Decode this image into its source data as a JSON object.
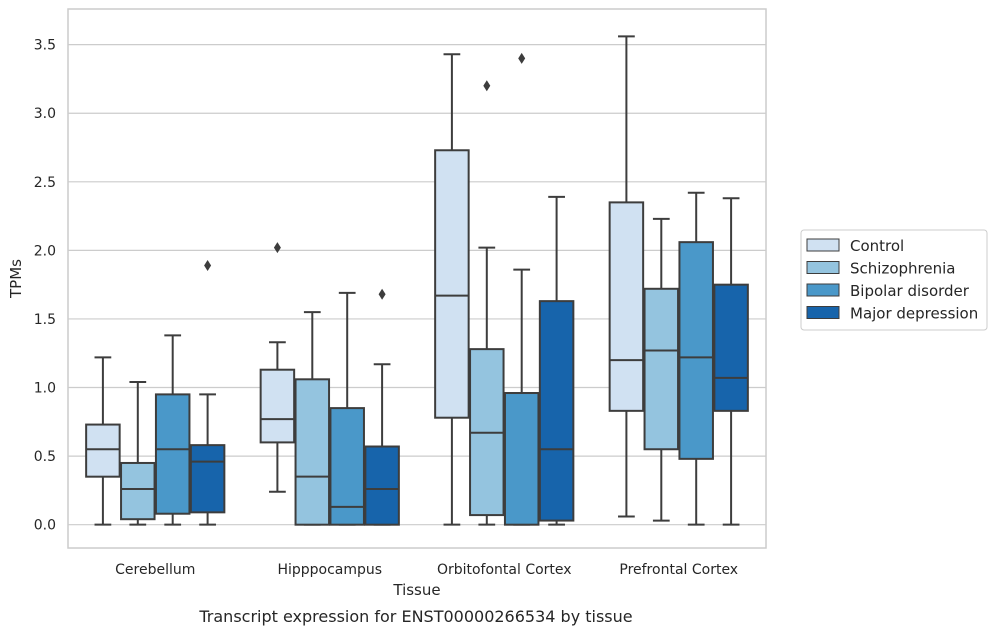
{
  "caption": "Transcript expression for ENST00000266534 by tissue",
  "chart_data": {
    "type": "box",
    "xlabel": "Tissue",
    "ylabel": "TPMs",
    "ylim": [
      -0.17,
      3.76
    ],
    "yticks": [
      "0.0",
      "0.5",
      "1.0",
      "1.5",
      "2.0",
      "2.5",
      "3.0",
      "3.5"
    ],
    "ytick_values": [
      0,
      0.5,
      1.0,
      1.5,
      2.0,
      2.5,
      3.0,
      3.5
    ],
    "grid": true,
    "legend_position": "right",
    "categories": [
      "Cerebellum",
      "Hipppocampus",
      "Orbitofontal Cortex",
      "Prefrontal Cortex"
    ],
    "series": [
      {
        "name": "Control",
        "color": "#d0e1f2",
        "boxes": [
          {
            "whislo": 0.0,
            "q1": 0.35,
            "med": 0.55,
            "q3": 0.73,
            "whishi": 1.22,
            "fliers": []
          },
          {
            "whislo": 0.24,
            "q1": 0.6,
            "med": 0.77,
            "q3": 1.13,
            "whishi": 1.33,
            "fliers": [
              2.02
            ]
          },
          {
            "whislo": 0.0,
            "q1": 0.78,
            "med": 1.67,
            "q3": 2.73,
            "whishi": 3.43,
            "fliers": []
          },
          {
            "whislo": 0.06,
            "q1": 0.83,
            "med": 1.2,
            "q3": 2.35,
            "whishi": 3.56,
            "fliers": []
          }
        ]
      },
      {
        "name": "Schizophrenia",
        "color": "#94c4df",
        "boxes": [
          {
            "whislo": 0.0,
            "q1": 0.04,
            "med": 0.26,
            "q3": 0.45,
            "whishi": 1.04,
            "fliers": []
          },
          {
            "whislo": 0.0,
            "q1": 0.0,
            "med": 0.35,
            "q3": 1.06,
            "whishi": 1.55,
            "fliers": []
          },
          {
            "whislo": 0.0,
            "q1": 0.07,
            "med": 0.67,
            "q3": 1.28,
            "whishi": 2.02,
            "fliers": [
              3.2
            ]
          },
          {
            "whislo": 0.03,
            "q1": 0.55,
            "med": 1.27,
            "q3": 1.72,
            "whishi": 2.23,
            "fliers": []
          }
        ]
      },
      {
        "name": "Bipolar disorder",
        "color": "#4a98c9",
        "boxes": [
          {
            "whislo": 0.0,
            "q1": 0.08,
            "med": 0.55,
            "q3": 0.95,
            "whishi": 1.38,
            "fliers": []
          },
          {
            "whislo": 0.0,
            "q1": 0.0,
            "med": 0.13,
            "q3": 0.85,
            "whishi": 1.69,
            "fliers": []
          },
          {
            "whislo": 0.0,
            "q1": 0.0,
            "med": 0.96,
            "q3": 0.96,
            "whishi": 1.86,
            "fliers": [
              3.4
            ]
          },
          {
            "whislo": 0.0,
            "q1": 0.48,
            "med": 1.22,
            "q3": 2.06,
            "whishi": 2.42,
            "fliers": []
          }
        ]
      },
      {
        "name": "Major depression",
        "color": "#1764ab",
        "boxes": [
          {
            "whislo": 0.0,
            "q1": 0.09,
            "med": 0.46,
            "q3": 0.58,
            "whishi": 0.95,
            "fliers": [
              1.89
            ]
          },
          {
            "whislo": 0.0,
            "q1": 0.0,
            "med": 0.26,
            "q3": 0.57,
            "whishi": 1.17,
            "fliers": [
              1.68
            ]
          },
          {
            "whislo": 0.0,
            "q1": 0.03,
            "med": 0.55,
            "q3": 1.63,
            "whishi": 2.39,
            "fliers": []
          },
          {
            "whislo": 0.0,
            "q1": 0.83,
            "med": 1.07,
            "q3": 1.75,
            "whishi": 2.38,
            "fliers": []
          }
        ]
      }
    ]
  }
}
